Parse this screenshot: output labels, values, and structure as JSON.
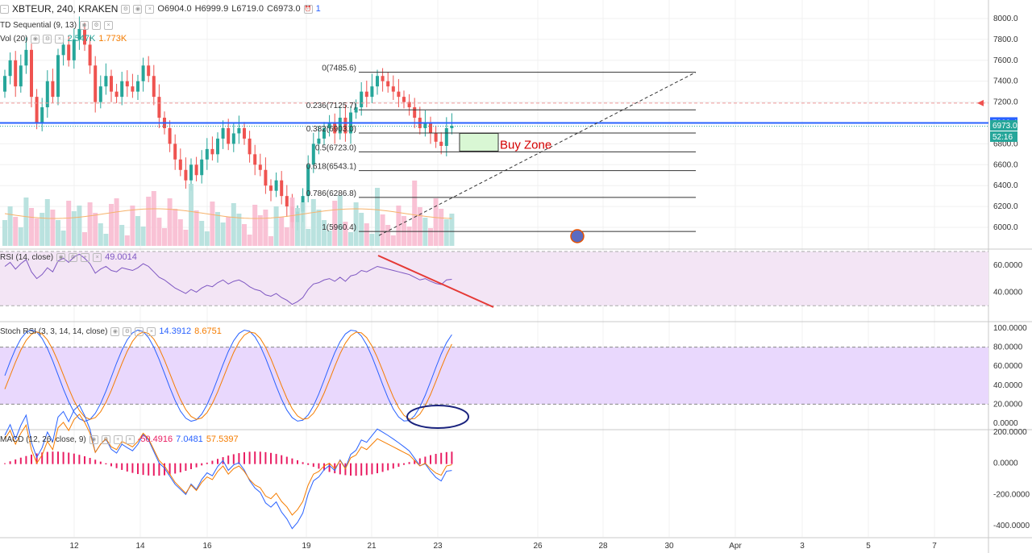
{
  "header": {
    "symbol": "XBTEUR, 240, KRAKEN",
    "open_label": "O",
    "open": "6904.0",
    "high_label": "H",
    "high": "6999.9",
    "low_label": "L",
    "low": "6719.0",
    "close_label": "C",
    "close": "6973.0",
    "alerts": "1"
  },
  "indicators": {
    "td": "TD Sequential (9, 13)",
    "vol": "Vol (20)",
    "vol_v1": "2.547K",
    "vol_v2": "1.773K",
    "rsi": "RSI (14, close)",
    "rsi_val": "49.0014",
    "stoch": "Stoch RSI (3, 3, 14, 14, close)",
    "stoch_k": "14.3912",
    "stoch_d": "8.6751",
    "macd": "MACD (12, 26, close, 9)",
    "macd_hist": "-50.4916",
    "macd_line": "7.0481",
    "macd_signal": "57.5397"
  },
  "colors": {
    "up": "#26a69a",
    "down": "#ef5350",
    "blue_line": "#2962ff",
    "orange_line": "#f57c00",
    "rsi_line": "#7e57c2",
    "band": "#e9d8fd"
  },
  "annotations": {
    "buy_zone": "Buy Zone"
  },
  "chart_data": [
    {
      "type": "candlestick",
      "title": "XBTEUR, 240, KRAKEN",
      "ylim": [
        5800,
        8100
      ],
      "y_ticks": [
        "8000.0",
        "7800.0",
        "7600.0",
        "7400.0",
        "7200.0",
        "7000.0",
        "6800.0",
        "6600.0",
        "6400.0",
        "6200.0",
        "6000.0"
      ],
      "x_ticks": [
        "12",
        "14",
        "16",
        "19",
        "21",
        "23",
        "26",
        "28",
        "30",
        "Apr",
        "3",
        "5",
        "7"
      ],
      "price_labels": {
        "line": "7000.4",
        "last": "6973.0",
        "countdown": "52:16"
      },
      "fib_levels": [
        {
          "label": "0(7485.6)",
          "value": 7485.6
        },
        {
          "label": "0.236(7125.7)",
          "value": 7125.7
        },
        {
          "label": "0.382(6903.0)",
          "value": 6903.0
        },
        {
          "label": "0.5(6723.0)",
          "value": 6723.0
        },
        {
          "label": "0.618(6543.1)",
          "value": 6543.1
        },
        {
          "label": "0.786(6286.8)",
          "value": 6286.8
        },
        {
          "label": "1(5960.4)",
          "value": 5960.4
        }
      ],
      "horizontal_line": 7000.4,
      "dashed_red_line": 7190,
      "buy_zone": {
        "high": 6900,
        "low": 6730
      }
    },
    {
      "type": "line",
      "title": "RSI (14, close)",
      "ylim": [
        20,
        70
      ],
      "y_ticks": [
        "60.0000",
        "40.0000"
      ],
      "band": [
        30,
        70
      ],
      "last": 49.0014
    },
    {
      "type": "line",
      "title": "Stoch RSI (3, 3, 14, 14, close)",
      "ylim": [
        0,
        100
      ],
      "y_ticks": [
        "100.0000",
        "80.0000",
        "60.0000",
        "40.0000",
        "20.0000",
        "0.0000"
      ],
      "band": [
        20,
        80
      ]
    },
    {
      "type": "line",
      "title": "MACD (12, 26, close, 9)",
      "ylim": [
        -400,
        200
      ],
      "y_ticks": [
        "200.0000",
        "0.0000",
        "-200.0000",
        "-400.0000"
      ]
    }
  ]
}
